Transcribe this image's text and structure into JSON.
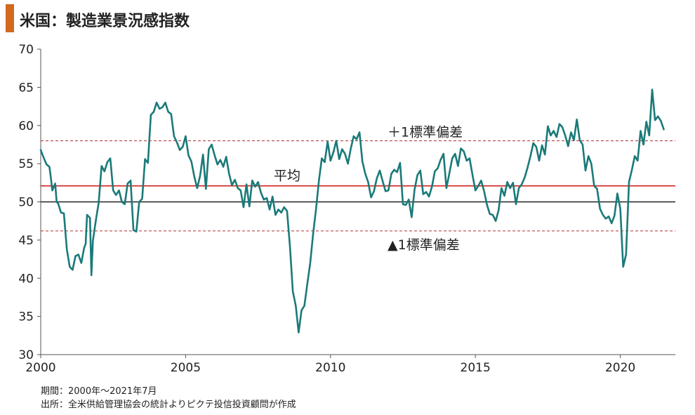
{
  "title": "米国：製造業景況感指数",
  "notes": {
    "period": "期間：2000年～2021年7月",
    "source": "出所：全米供給管理協会の統計よりピクテ投信投資顧問が作成"
  },
  "colors": {
    "title_accent": "#D2691E",
    "series": "#1A7A78",
    "mean_line": "#D11F1F",
    "sd_lines": "#B23030",
    "baseline": "#222222",
    "axis": "#555555"
  },
  "chart_data": {
    "type": "line",
    "title": "米国：製造業景況感指数",
    "xlabel": "",
    "ylabel": "",
    "xlim": [
      2000,
      2021.9
    ],
    "ylim": [
      30,
      70
    ],
    "x_ticks": [
      2000,
      2005,
      2010,
      2015,
      2020
    ],
    "y_ticks": [
      30,
      35,
      40,
      45,
      50,
      55,
      60,
      65,
      70
    ],
    "grid": false,
    "reference_lines": [
      {
        "label": "＋1標準偏差",
        "value": 58.0,
        "style": "dashed"
      },
      {
        "label": "平均",
        "value": 52.1,
        "style": "solid"
      },
      {
        "label": "",
        "value": 50.0,
        "style": "solid"
      },
      {
        "label": "▲1標準偏差",
        "value": 46.2,
        "style": "dashed"
      }
    ],
    "series": [
      {
        "name": "",
        "x": [
          2000.0,
          2000.1,
          2000.2,
          2000.3,
          2000.35,
          2000.4,
          2000.5,
          2000.55,
          2000.6,
          2000.7,
          2000.8,
          2000.9,
          2001.0,
          2001.1,
          2001.2,
          2001.3,
          2001.4,
          2001.5,
          2001.55,
          2001.6,
          2001.7,
          2001.75,
          2001.8,
          2001.9,
          2002.0,
          2002.1,
          2002.2,
          2002.3,
          2002.4,
          2002.5,
          2002.6,
          2002.7,
          2002.8,
          2002.9,
          2003.0,
          2003.1,
          2003.2,
          2003.3,
          2003.4,
          2003.5,
          2003.6,
          2003.7,
          2003.8,
          2003.9,
          2004.0,
          2004.1,
          2004.2,
          2004.3,
          2004.4,
          2004.5,
          2004.6,
          2004.7,
          2004.8,
          2004.9,
          2005.0,
          2005.1,
          2005.2,
          2005.3,
          2005.4,
          2005.5,
          2005.6,
          2005.7,
          2005.8,
          2005.9,
          2006.0,
          2006.1,
          2006.2,
          2006.3,
          2006.4,
          2006.5,
          2006.6,
          2006.7,
          2006.8,
          2006.9,
          2007.0,
          2007.1,
          2007.2,
          2007.3,
          2007.4,
          2007.5,
          2007.6,
          2007.7,
          2007.8,
          2007.9,
          2008.0,
          2008.1,
          2008.2,
          2008.3,
          2008.4,
          2008.5,
          2008.6,
          2008.7,
          2008.8,
          2008.9,
          2009.0,
          2009.1,
          2009.2,
          2009.3,
          2009.4,
          2009.5,
          2009.6,
          2009.7,
          2009.8,
          2009.9,
          2010.0,
          2010.1,
          2010.2,
          2010.3,
          2010.4,
          2010.5,
          2010.6,
          2010.7,
          2010.8,
          2010.9,
          2011.0,
          2011.1,
          2011.2,
          2011.3,
          2011.4,
          2011.5,
          2011.6,
          2011.7,
          2011.8,
          2011.9,
          2012.0,
          2012.1,
          2012.2,
          2012.3,
          2012.4,
          2012.5,
          2012.6,
          2012.7,
          2012.8,
          2012.9,
          2013.0,
          2013.1,
          2013.2,
          2013.3,
          2013.4,
          2013.5,
          2013.6,
          2013.7,
          2013.8,
          2013.9,
          2014.0,
          2014.1,
          2014.2,
          2014.3,
          2014.4,
          2014.5,
          2014.6,
          2014.7,
          2014.8,
          2014.9,
          2015.0,
          2015.1,
          2015.2,
          2015.3,
          2015.4,
          2015.5,
          2015.6,
          2015.7,
          2015.8,
          2015.9,
          2016.0,
          2016.1,
          2016.2,
          2016.3,
          2016.4,
          2016.5,
          2016.6,
          2016.7,
          2016.8,
          2016.9,
          2017.0,
          2017.1,
          2017.2,
          2017.3,
          2017.4,
          2017.5,
          2017.6,
          2017.7,
          2017.8,
          2017.9,
          2018.0,
          2018.1,
          2018.2,
          2018.3,
          2018.4,
          2018.5,
          2018.6,
          2018.7,
          2018.8,
          2018.9,
          2019.0,
          2019.1,
          2019.2,
          2019.3,
          2019.4,
          2019.5,
          2019.6,
          2019.7,
          2019.8,
          2019.9,
          2020.0,
          2020.1,
          2020.2,
          2020.3,
          2020.4,
          2020.5,
          2020.6,
          2020.7,
          2020.8,
          2020.9,
          2021.0,
          2021.1,
          2021.2,
          2021.3,
          2021.4,
          2021.5
        ],
        "values": [
          56.8,
          55.8,
          54.9,
          54.6,
          53.2,
          51.5,
          52.4,
          50.0,
          49.8,
          48.6,
          48.5,
          43.8,
          41.5,
          41.1,
          42.9,
          43.1,
          42.0,
          44.0,
          44.5,
          48.3,
          47.9,
          40.4,
          44.9,
          47.5,
          49.9,
          54.7,
          54.0,
          55.2,
          55.7,
          51.5,
          50.9,
          51.5,
          50.0,
          49.7,
          52.4,
          52.8,
          46.3,
          46.1,
          50.0,
          50.4,
          55.6,
          55.1,
          61.4,
          61.8,
          63.0,
          62.2,
          62.4,
          63.0,
          61.8,
          61.5,
          58.6,
          57.8,
          56.8,
          57.2,
          58.6,
          56.1,
          55.3,
          53.3,
          51.8,
          53.4,
          56.2,
          51.7,
          56.9,
          57.5,
          56.1,
          54.9,
          55.5,
          54.6,
          55.9,
          53.7,
          52.2,
          52.9,
          51.8,
          51.5,
          49.3,
          52.3,
          49.4,
          52.8,
          52.0,
          52.6,
          51.2,
          50.3,
          50.5,
          49.0,
          50.7,
          48.3,
          49.0,
          48.6,
          49.3,
          48.8,
          44.2,
          38.3,
          36.4,
          32.9,
          35.8,
          36.4,
          39.3,
          42.0,
          45.8,
          49.0,
          52.8,
          55.7,
          55.2,
          57.9,
          55.4,
          56.5,
          58.0,
          55.6,
          56.9,
          56.3,
          55.0,
          57.0,
          58.6,
          58.2,
          59.1,
          55.3,
          53.7,
          52.6,
          50.6,
          51.4,
          53.1,
          54.1,
          52.7,
          51.4,
          51.5,
          53.7,
          54.2,
          53.9,
          55.1,
          49.7,
          49.6,
          50.3,
          48.0,
          51.6,
          53.5,
          54.1,
          51.0,
          51.3,
          50.7,
          52.0,
          54.0,
          54.4,
          55.5,
          56.3,
          51.8,
          53.7,
          55.7,
          56.3,
          54.7,
          57.0,
          56.6,
          55.4,
          55.7,
          53.5,
          51.5,
          52.1,
          52.8,
          51.4,
          49.6,
          48.4,
          48.3,
          47.5,
          48.9,
          51.8,
          50.8,
          52.6,
          51.8,
          52.5,
          49.7,
          51.8,
          52.3,
          53.2,
          54.5,
          56.0,
          57.7,
          57.2,
          55.4,
          57.4,
          56.2,
          59.9,
          58.7,
          59.3,
          58.5,
          60.2,
          59.8,
          58.7,
          57.3,
          59.1,
          58.1,
          60.8,
          58.1,
          57.5,
          54.1,
          56.0,
          55.0,
          52.1,
          51.7,
          49.1,
          48.3,
          47.8,
          48.1,
          47.2,
          48.2,
          51.1,
          49.1,
          41.5,
          43.1,
          52.6,
          54.2,
          56.0,
          55.4,
          59.3,
          57.5,
          60.5,
          58.7,
          64.7,
          60.7,
          61.2,
          60.6,
          59.5
        ]
      }
    ]
  }
}
